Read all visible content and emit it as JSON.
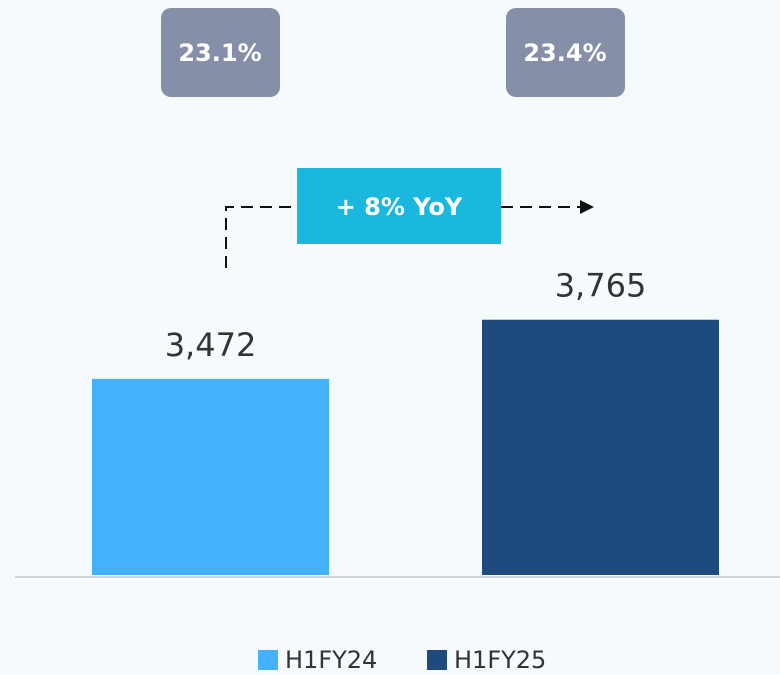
{
  "chart_data": {
    "type": "bar",
    "categories": [
      null
    ],
    "series": [
      {
        "name": "H1FY24",
        "color": "#45b0fc",
        "values": [
          3472
        ],
        "value_labels": [
          "3,472"
        ]
      },
      {
        "name": "H1FY25",
        "color": "#1f4a7d",
        "values": [
          3765
        ],
        "value_labels": [
          "3,765"
        ]
      }
    ],
    "ylim": [
      2500,
      5300
    ],
    "annotations": [
      "23.1%",
      "23.4%",
      "+ 8% YoY"
    ],
    "legend": "bottom"
  }
}
